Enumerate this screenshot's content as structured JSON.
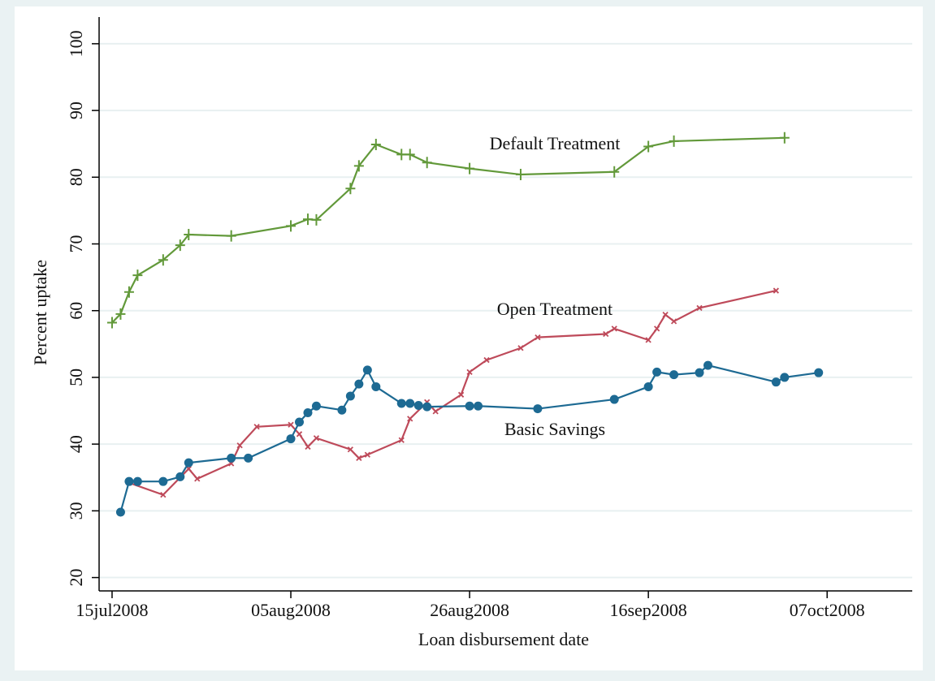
{
  "chart_data": {
    "type": "line",
    "x_label": "Loan disbursement date",
    "y_label": "Percent uptake",
    "xlim": [
      "2008-07-13",
      "2008-10-17"
    ],
    "xticks": [
      {
        "value": "2008-07-15",
        "label": "15jul2008"
      },
      {
        "value": "2008-08-05",
        "label": "05aug2008"
      },
      {
        "value": "2008-08-26",
        "label": "26aug2008"
      },
      {
        "value": "2008-09-16",
        "label": "16sep2008"
      },
      {
        "value": "2008-10-07",
        "label": "07oct2008"
      }
    ],
    "ylim": [
      18,
      104
    ],
    "yticks": [
      20,
      30,
      40,
      50,
      60,
      70,
      80,
      90,
      100
    ],
    "grid": true,
    "series": [
      {
        "name": "Default Treatment",
        "color": "#62993a",
        "marker": "plus",
        "x": [
          "2008-07-15",
          "2008-07-16",
          "2008-07-17",
          "2008-07-18",
          "2008-07-21",
          "2008-07-23",
          "2008-07-24",
          "2008-07-29",
          "2008-08-05",
          "2008-08-07",
          "2008-08-08",
          "2008-08-12",
          "2008-08-13",
          "2008-08-15",
          "2008-08-18",
          "2008-08-19",
          "2008-08-21",
          "2008-08-26",
          "2008-09-01",
          "2008-09-12",
          "2008-09-16",
          "2008-09-19",
          "2008-10-02"
        ],
        "values": [
          58.2,
          59.5,
          62.8,
          65.3,
          67.6,
          69.8,
          71.4,
          71.2,
          72.7,
          73.7,
          73.6,
          78.3,
          81.7,
          84.9,
          83.4,
          83.4,
          82.2,
          81.3,
          80.4,
          80.8,
          84.6,
          85.4,
          85.9
        ]
      },
      {
        "name": "Open Treatment",
        "color": "#be4a5a",
        "marker": "cross",
        "x": [
          "2008-07-17",
          "2008-07-21",
          "2008-07-24",
          "2008-07-25",
          "2008-07-29",
          "2008-07-30",
          "2008-08-01",
          "2008-08-05",
          "2008-08-06",
          "2008-08-07",
          "2008-08-08",
          "2008-08-12",
          "2008-08-13",
          "2008-08-14",
          "2008-08-18",
          "2008-08-19",
          "2008-08-21",
          "2008-08-22",
          "2008-08-25",
          "2008-08-26",
          "2008-08-28",
          "2008-09-01",
          "2008-09-03",
          "2008-09-11",
          "2008-09-12",
          "2008-09-16",
          "2008-09-17",
          "2008-09-18",
          "2008-09-19",
          "2008-09-22",
          "2008-10-01"
        ],
        "values": [
          34.2,
          32.4,
          36.3,
          34.8,
          37.1,
          39.8,
          42.6,
          42.9,
          41.5,
          39.6,
          40.9,
          39.2,
          37.9,
          38.4,
          40.6,
          43.8,
          46.3,
          44.9,
          47.4,
          50.8,
          52.6,
          54.4,
          56.0,
          56.5,
          57.3,
          55.6,
          57.3,
          59.4,
          58.4,
          60.4,
          63.0
        ]
      },
      {
        "name": "Basic Savings",
        "color": "#1d6a93",
        "marker": "dot",
        "x": [
          "2008-07-16",
          "2008-07-17",
          "2008-07-18",
          "2008-07-21",
          "2008-07-23",
          "2008-07-24",
          "2008-07-29",
          "2008-07-31",
          "2008-08-05",
          "2008-08-06",
          "2008-08-07",
          "2008-08-08",
          "2008-08-11",
          "2008-08-12",
          "2008-08-13",
          "2008-08-14",
          "2008-08-15",
          "2008-08-18",
          "2008-08-19",
          "2008-08-20",
          "2008-08-21",
          "2008-08-26",
          "2008-08-27",
          "2008-09-03",
          "2008-09-12",
          "2008-09-16",
          "2008-09-17",
          "2008-09-19",
          "2008-09-22",
          "2008-09-23",
          "2008-10-01",
          "2008-10-02",
          "2008-10-06"
        ],
        "values": [
          29.8,
          34.4,
          34.4,
          34.4,
          35.1,
          37.2,
          37.9,
          37.9,
          40.8,
          43.3,
          44.7,
          45.7,
          45.1,
          47.2,
          49.0,
          51.1,
          48.6,
          46.1,
          46.1,
          45.8,
          45.6,
          45.7,
          45.7,
          45.3,
          46.7,
          48.6,
          50.8,
          50.4,
          50.7,
          51.8,
          49.3,
          50.0,
          50.7
        ]
      }
    ]
  }
}
